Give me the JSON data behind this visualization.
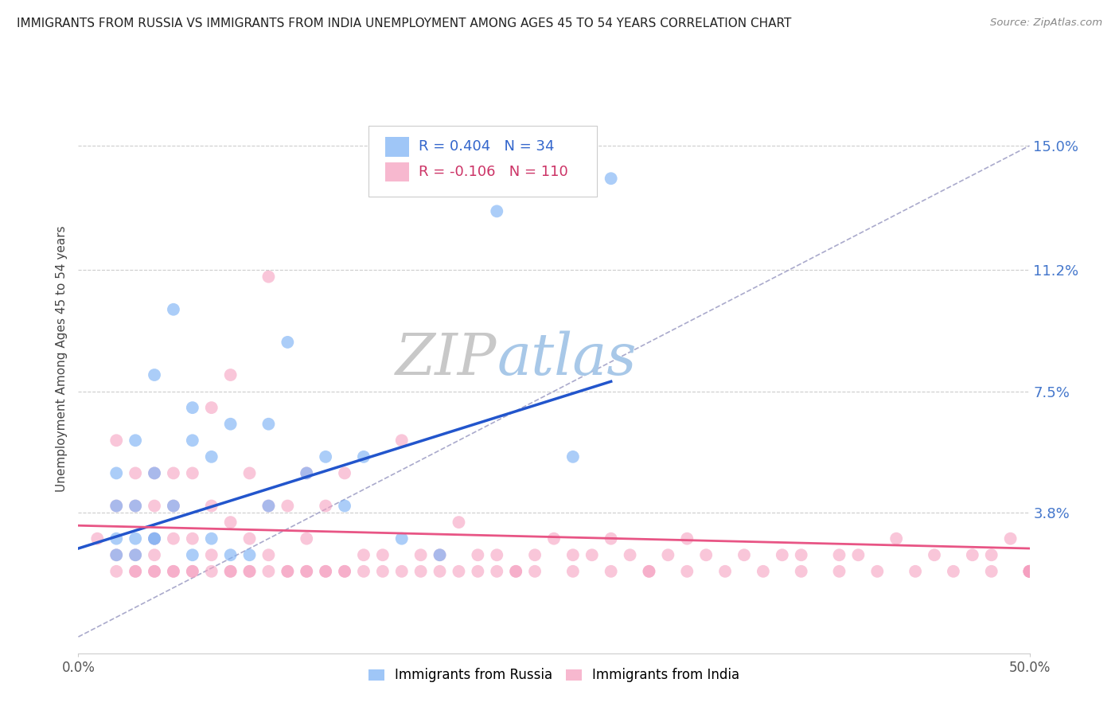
{
  "title": "IMMIGRANTS FROM RUSSIA VS IMMIGRANTS FROM INDIA UNEMPLOYMENT AMONG AGES 45 TO 54 YEARS CORRELATION CHART",
  "source": "Source: ZipAtlas.com",
  "ylabel": "Unemployment Among Ages 45 to 54 years",
  "xlim": [
    0.0,
    0.5
  ],
  "ylim": [
    -0.005,
    0.175
  ],
  "yticks": [
    0.038,
    0.075,
    0.112,
    0.15
  ],
  "ytick_labels": [
    "3.8%",
    "7.5%",
    "11.2%",
    "15.0%"
  ],
  "xticks": [
    0.0,
    0.5
  ],
  "xtick_labels": [
    "0.0%",
    "50.0%"
  ],
  "legend_r_russia": "R = 0.404",
  "legend_n_russia": "N = 34",
  "legend_r_india": "R = -0.106",
  "legend_n_india": "N = 110",
  "russia_color": "#7fb3f5",
  "india_color": "#f5a0c0",
  "russia_line_color": "#2255cc",
  "india_line_color": "#e85585",
  "label_russia": "Immigrants from Russia",
  "label_india": "Immigrants from India",
  "background_color": "#ffffff",
  "grid_color": "#cccccc",
  "watermark_zip": "ZIP",
  "watermark_atlas": "atlas",
  "russia_x": [
    0.02,
    0.02,
    0.02,
    0.03,
    0.03,
    0.03,
    0.04,
    0.04,
    0.04,
    0.05,
    0.05,
    0.06,
    0.06,
    0.06,
    0.07,
    0.07,
    0.08,
    0.08,
    0.09,
    0.1,
    0.1,
    0.11,
    0.12,
    0.13,
    0.14,
    0.15,
    0.17,
    0.19,
    0.22,
    0.26,
    0.28,
    0.02,
    0.03,
    0.04
  ],
  "russia_y": [
    0.025,
    0.04,
    0.05,
    0.025,
    0.04,
    0.06,
    0.03,
    0.05,
    0.08,
    0.04,
    0.1,
    0.025,
    0.06,
    0.07,
    0.03,
    0.055,
    0.025,
    0.065,
    0.025,
    0.04,
    0.065,
    0.09,
    0.05,
    0.055,
    0.04,
    0.055,
    0.03,
    0.025,
    0.13,
    0.055,
    0.14,
    0.03,
    0.03,
    0.03
  ],
  "india_x": [
    0.01,
    0.02,
    0.02,
    0.02,
    0.03,
    0.03,
    0.03,
    0.03,
    0.04,
    0.04,
    0.04,
    0.04,
    0.04,
    0.05,
    0.05,
    0.05,
    0.05,
    0.06,
    0.06,
    0.06,
    0.07,
    0.07,
    0.07,
    0.08,
    0.08,
    0.08,
    0.09,
    0.09,
    0.09,
    0.1,
    0.1,
    0.1,
    0.11,
    0.11,
    0.12,
    0.12,
    0.12,
    0.13,
    0.13,
    0.14,
    0.14,
    0.15,
    0.16,
    0.17,
    0.18,
    0.19,
    0.2,
    0.21,
    0.22,
    0.23,
    0.24,
    0.25,
    0.26,
    0.27,
    0.28,
    0.29,
    0.3,
    0.31,
    0.32,
    0.33,
    0.35,
    0.37,
    0.38,
    0.4,
    0.41,
    0.43,
    0.45,
    0.47,
    0.48,
    0.49,
    0.02,
    0.03,
    0.04,
    0.05,
    0.06,
    0.07,
    0.08,
    0.09,
    0.1,
    0.11,
    0.12,
    0.13,
    0.14,
    0.15,
    0.16,
    0.17,
    0.18,
    0.19,
    0.2,
    0.21,
    0.22,
    0.23,
    0.24,
    0.26,
    0.28,
    0.3,
    0.32,
    0.34,
    0.36,
    0.38,
    0.4,
    0.42,
    0.44,
    0.46,
    0.48,
    0.5,
    0.5,
    0.5,
    0.5,
    0.5
  ],
  "india_y": [
    0.03,
    0.025,
    0.04,
    0.06,
    0.02,
    0.025,
    0.04,
    0.05,
    0.02,
    0.025,
    0.03,
    0.04,
    0.05,
    0.02,
    0.03,
    0.04,
    0.05,
    0.02,
    0.03,
    0.05,
    0.025,
    0.04,
    0.07,
    0.02,
    0.035,
    0.08,
    0.02,
    0.03,
    0.05,
    0.025,
    0.04,
    0.11,
    0.02,
    0.04,
    0.02,
    0.03,
    0.05,
    0.02,
    0.04,
    0.02,
    0.05,
    0.025,
    0.025,
    0.06,
    0.025,
    0.025,
    0.035,
    0.025,
    0.025,
    0.02,
    0.025,
    0.03,
    0.025,
    0.025,
    0.03,
    0.025,
    0.02,
    0.025,
    0.03,
    0.025,
    0.025,
    0.025,
    0.025,
    0.025,
    0.025,
    0.03,
    0.025,
    0.025,
    0.025,
    0.03,
    0.02,
    0.02,
    0.02,
    0.02,
    0.02,
    0.02,
    0.02,
    0.02,
    0.02,
    0.02,
    0.02,
    0.02,
    0.02,
    0.02,
    0.02,
    0.02,
    0.02,
    0.02,
    0.02,
    0.02,
    0.02,
    0.02,
    0.02,
    0.02,
    0.02,
    0.02,
    0.02,
    0.02,
    0.02,
    0.02,
    0.02,
    0.02,
    0.02,
    0.02,
    0.02,
    0.02,
    0.02,
    0.02,
    0.02,
    0.02
  ],
  "russia_line_x": [
    0.0,
    0.28
  ],
  "russia_line_y": [
    0.027,
    0.078
  ],
  "india_line_x": [
    0.0,
    0.5
  ],
  "india_line_y": [
    0.034,
    0.027
  ],
  "diag_line_x": [
    0.0,
    0.5
  ],
  "diag_line_y": [
    0.0,
    0.15
  ]
}
